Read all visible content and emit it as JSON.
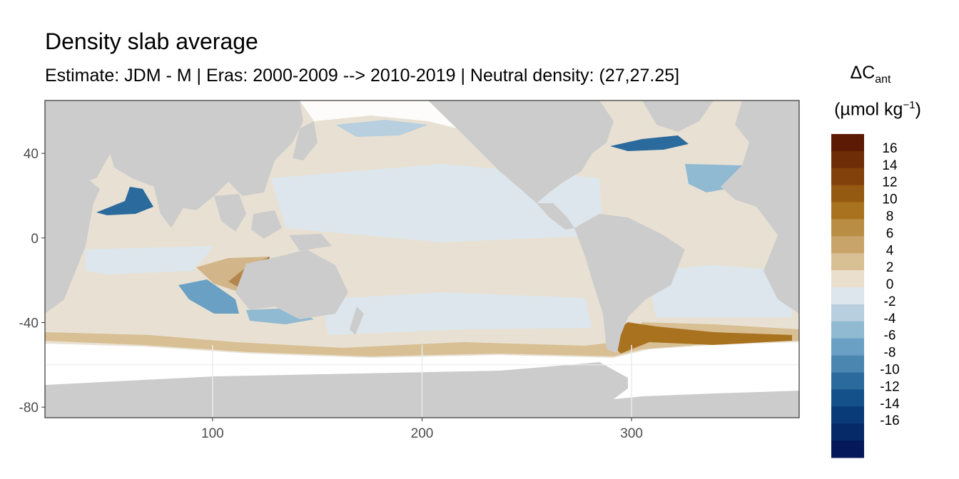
{
  "title": "Density slab average",
  "subtitle": "Estimate: JDM - M | Eras: 2000-2009 --> 2010-2019 | Neutral density: (27,27.25]",
  "legend": {
    "title_symbol": "ΔC",
    "title_subscript": "ant",
    "unit_prefix": "(µmol kg",
    "unit_exponent": "−1",
    "unit_suffix": ")",
    "labels": [
      "16",
      "14",
      "12",
      "10",
      "8",
      "6",
      "4",
      "2",
      "0",
      "-2",
      "-4",
      "-6",
      "-8",
      "-10",
      "-12",
      "-14",
      "-16"
    ],
    "colors": [
      "#5c1a04",
      "#6e2d06",
      "#82400a",
      "#955a12",
      "#a9721f",
      "#ba8d44",
      "#c9a46a",
      "#d8bf94",
      "#eadfcd",
      "#dce6ec",
      "#b7cfde",
      "#90b9d2",
      "#6aa0c3",
      "#4a86b0",
      "#2b6a9d",
      "#14508a",
      "#083b78",
      "#062a68",
      "#05195a"
    ]
  },
  "map": {
    "land_color": "#cccccc",
    "ocean_base_color": "#e8e1d3",
    "no_data_color": "#ffffff",
    "x_ticks": [
      "100",
      "200",
      "300"
    ],
    "y_ticks": [
      "40",
      "0",
      "-40",
      "-80"
    ]
  },
  "chart_data": {
    "type": "heatmap",
    "title": "Density slab average",
    "subtitle": "Estimate: JDM - M | Eras: 2000-2009 --> 2010-2019 | Neutral density: (27,27.25]",
    "xlim": [
      20,
      380
    ],
    "ylim": [
      -85,
      65
    ],
    "x_ticks": [
      100,
      200,
      300
    ],
    "y_ticks": [
      40,
      0,
      -40,
      -80
    ],
    "colorbar_breaks": [
      16,
      14,
      12,
      10,
      8,
      6,
      4,
      2,
      0,
      -2,
      -4,
      -6,
      -8,
      -10,
      -12,
      -14,
      -16
    ],
    "colorbar_unit": "µmol kg⁻¹",
    "grid": true
  }
}
